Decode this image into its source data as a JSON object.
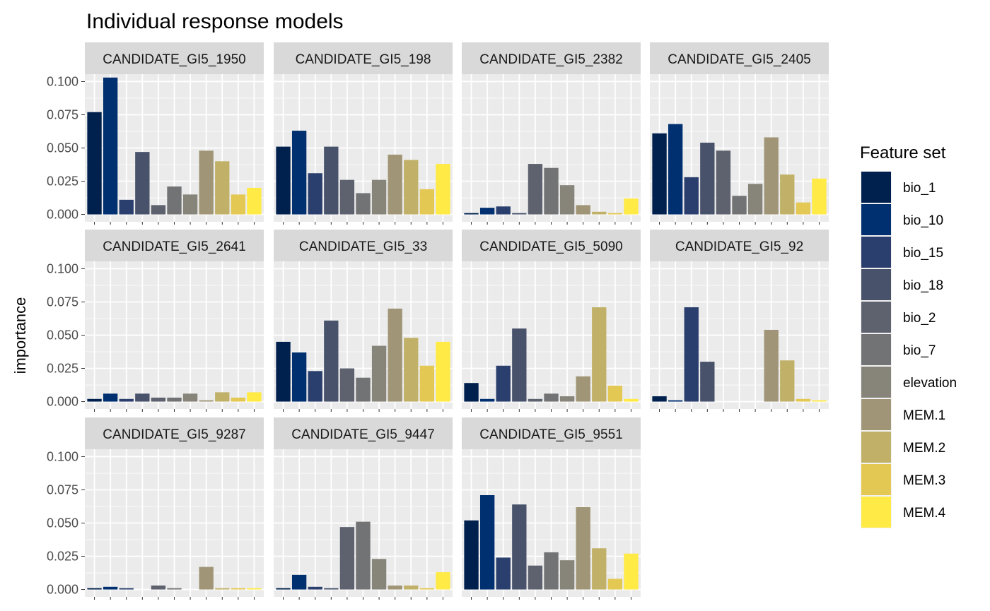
{
  "chart_data": {
    "type": "bar",
    "title": "Individual response models",
    "xlabel": "",
    "ylabel": "importance",
    "ylim": [
      0,
      0.1
    ],
    "yticks": [
      "0.000",
      "0.025",
      "0.050",
      "0.075",
      "0.100"
    ],
    "grid": true,
    "legend": {
      "title": "Feature set",
      "placement": "right"
    },
    "categories": [
      "bio_1",
      "bio_10",
      "bio_15",
      "bio_18",
      "bio_2",
      "bio_7",
      "elevation",
      "MEM.1",
      "MEM.2",
      "MEM.3",
      "MEM.4"
    ],
    "colors": [
      "#00204d",
      "#00306f",
      "#2a3f6d",
      "#48526b",
      "#5e626e",
      "#727374",
      "#878479",
      "#a09677",
      "#c1b168",
      "#e3c853",
      "#ffea46"
    ],
    "panels": [
      {
        "name": "CANDIDATE_GI5_1950",
        "values": [
          0.077,
          0.103,
          0.011,
          0.047,
          0.007,
          0.021,
          0.015,
          0.048,
          0.04,
          0.015,
          0.02
        ]
      },
      {
        "name": "CANDIDATE_GI5_198",
        "values": [
          0.051,
          0.063,
          0.031,
          0.051,
          0.026,
          0.016,
          0.026,
          0.045,
          0.041,
          0.019,
          0.038
        ]
      },
      {
        "name": "CANDIDATE_GI5_2382",
        "values": [
          0.001,
          0.005,
          0.006,
          0.001,
          0.038,
          0.035,
          0.022,
          0.007,
          0.002,
          0.001,
          0.012
        ]
      },
      {
        "name": "CANDIDATE_GI5_2405",
        "values": [
          0.061,
          0.068,
          0.028,
          0.054,
          0.048,
          0.014,
          0.023,
          0.058,
          0.03,
          0.009,
          0.027
        ]
      },
      {
        "name": "CANDIDATE_GI5_2641",
        "values": [
          0.002,
          0.006,
          0.002,
          0.006,
          0.003,
          0.003,
          0.006,
          0.001,
          0.007,
          0.003,
          0.007
        ]
      },
      {
        "name": "CANDIDATE_GI5_33",
        "values": [
          0.045,
          0.037,
          0.023,
          0.061,
          0.025,
          0.018,
          0.042,
          0.07,
          0.048,
          0.027,
          0.045
        ]
      },
      {
        "name": "CANDIDATE_GI5_5090",
        "values": [
          0.014,
          0.002,
          0.027,
          0.055,
          0.002,
          0.006,
          0.004,
          0.019,
          0.071,
          0.012,
          0.002
        ]
      },
      {
        "name": "CANDIDATE_GI5_92",
        "values": [
          0.004,
          0.001,
          0.071,
          0.03,
          0.0,
          0.0,
          0.0,
          0.054,
          0.031,
          0.002,
          0.001
        ]
      },
      {
        "name": "CANDIDATE_GI5_9287",
        "values": [
          0.001,
          0.002,
          0.001,
          0.0,
          0.003,
          0.001,
          0.0,
          0.017,
          0.001,
          0.001,
          0.001
        ]
      },
      {
        "name": "CANDIDATE_GI5_9447",
        "values": [
          0.001,
          0.011,
          0.002,
          0.001,
          0.047,
          0.051,
          0.023,
          0.003,
          0.003,
          0.001,
          0.013
        ]
      },
      {
        "name": "CANDIDATE_GI5_9551",
        "values": [
          0.052,
          0.071,
          0.024,
          0.064,
          0.018,
          0.028,
          0.022,
          0.062,
          0.031,
          0.008,
          0.027
        ]
      }
    ]
  }
}
